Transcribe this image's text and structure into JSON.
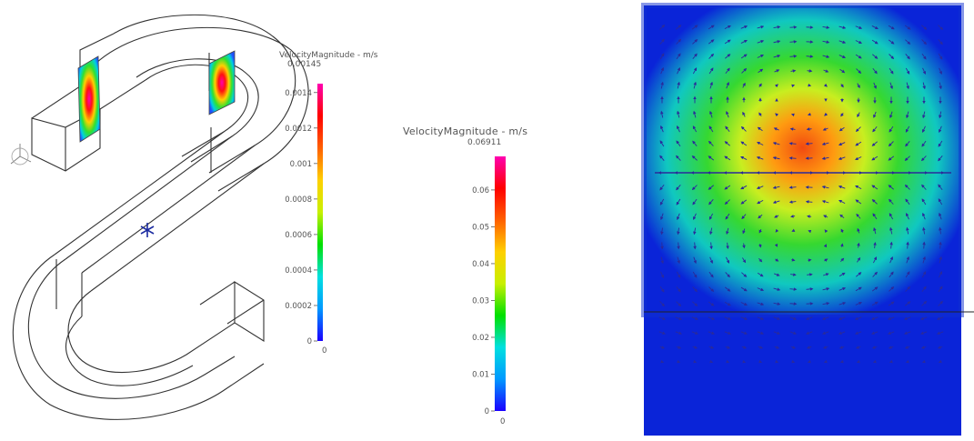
{
  "geometry_panel": {
    "legend": {
      "title": "VelocityMagnitude - m/s",
      "max_label": "0.00145",
      "ticks": [
        "0.0014",
        "0.0012",
        "0.001",
        "0.0008",
        "0.0006",
        "0.0004",
        "0.0002",
        "0"
      ],
      "min_label": "0",
      "tick_values": [
        0.0014,
        0.0012,
        0.001,
        0.0008,
        0.0006,
        0.0004,
        0.0002,
        0
      ],
      "range": [
        0,
        0.00145
      ],
      "colormap": [
        "#1a00ff",
        "#0099ff",
        "#00e0e0",
        "#00e000",
        "#c8f000",
        "#ffd000",
        "#ff6000",
        "#ff0000",
        "#ff00b0"
      ]
    },
    "icons": [
      "axis-triad-icon",
      "marker-asterisk-icon"
    ]
  },
  "middle_legend": {
    "title": "VelocityMagnitude - m/s",
    "max_label": "0.06911",
    "ticks": [
      "0.06",
      "0.05",
      "0.04",
      "0.03",
      "0.02",
      "0.01",
      "0"
    ],
    "min_label": "0",
    "tick_values": [
      0.06,
      0.05,
      0.04,
      0.03,
      0.02,
      0.01,
      0
    ],
    "range": [
      0,
      0.06911
    ],
    "colormap": [
      "#1a00ff",
      "#0099ff",
      "#00e0e0",
      "#00e000",
      "#c8f000",
      "#ffd000",
      "#ff6000",
      "#ff0000",
      "#ff00b0"
    ]
  },
  "field_panel": {
    "colors": {
      "low": "#0a24d8",
      "mid": "#36d830",
      "high": "#f24a10",
      "arrow": "#2a2a9a"
    }
  }
}
